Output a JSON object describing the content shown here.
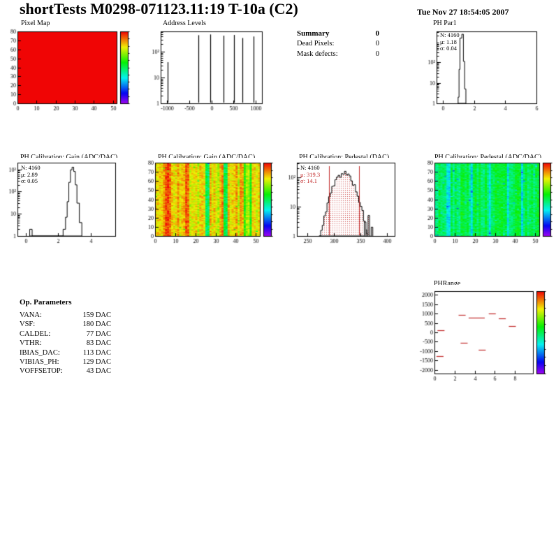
{
  "header": {
    "title": "shortTests M0298-071123.11:19 T-10a (C2)",
    "date": "Tue Nov 27 18:54:05 2007"
  },
  "summary": {
    "title": "Summary",
    "value": "0",
    "rows": [
      {
        "label": "Dead Pixels:",
        "value": "0"
      },
      {
        "label": "Mask defects:",
        "value": "0"
      }
    ]
  },
  "op_parameters": {
    "title": "Op. Parameters",
    "rows": [
      {
        "label": "VANA:",
        "value": "159 DAC"
      },
      {
        "label": "VSF:",
        "value": "180 DAC"
      },
      {
        "label": "CALDEL:",
        "value": "77 DAC"
      },
      {
        "label": "VTHR:",
        "value": "83 DAC"
      },
      {
        "label": "IBIAS_DAC:",
        "value": "113 DAC"
      },
      {
        "label": "VIBIAS_PH:",
        "value": "129 DAC"
      },
      {
        "label": "VOFFSETOP:",
        "value": "43 DAC"
      }
    ]
  },
  "chart_data": [
    {
      "id": "pixel-map",
      "type": "heatmap",
      "title": "Pixel Map",
      "x_range": [
        0,
        52
      ],
      "y_range": [
        0,
        80
      ],
      "x_ticks": [
        0,
        10,
        20,
        30,
        40,
        50
      ],
      "y_ticks": [
        0,
        10,
        20,
        30,
        40,
        50,
        60,
        70,
        80
      ],
      "colorbar": true,
      "palette": "rainbow",
      "pattern": {
        "kind": "uniform",
        "value": 1.0
      },
      "note": "all 4160 pixels at uniform maximum value (solid red)"
    },
    {
      "id": "address-levels",
      "type": "spikes",
      "title": "Address Levels",
      "x_range": [
        -1150,
        1150
      ],
      "x_ticks": [
        -1000,
        -500,
        0,
        500,
        1000
      ],
      "y_log_max_dec": 2.8,
      "y_decades": [
        {
          "dec": 0,
          "label": "1"
        },
        {
          "dec": 1,
          "label": "10"
        },
        {
          "dec": 2,
          "label": "10²"
        }
      ],
      "spikes": [
        [
          -990,
          40
        ],
        [
          -300,
          450
        ],
        [
          -30,
          480
        ],
        [
          280,
          430
        ],
        [
          520,
          460
        ],
        [
          700,
          350
        ],
        [
          960,
          400
        ]
      ]
    },
    {
      "id": "ph-par1",
      "type": "hist",
      "title": "PH Par1",
      "stats": {
        "n": "N: 4160",
        "mu": "μ: 1.18",
        "sigma": "σ: 0.04"
      },
      "x_range": [
        -0.4,
        6
      ],
      "x_ticks": [
        0,
        2,
        4,
        6
      ],
      "y_log_max_dec": 3.5,
      "y_decades": [
        {
          "dec": 0,
          "label": "1"
        },
        {
          "dec": 1,
          "label": "10"
        },
        {
          "dec": 2,
          "label": "10²"
        }
      ],
      "bins": [
        [
          0.98,
          2
        ],
        [
          1.04,
          45
        ],
        [
          1.1,
          1500
        ],
        [
          1.22,
          2300
        ],
        [
          1.32,
          110
        ],
        [
          1.4,
          5
        ],
        [
          1.48,
          0
        ]
      ]
    },
    {
      "id": "gain-hist",
      "type": "hist",
      "title": "PH Calibration: Gain (ADC/DAC)",
      "stats": {
        "n": "N: 4160",
        "mu": "μ: 2.89",
        "sigma": "σ: 0.05"
      },
      "x_range": [
        -0.5,
        5.5
      ],
      "x_ticks": [
        0,
        2,
        4
      ],
      "y_log_max_dec": 3.3,
      "y_decades": [
        {
          "dec": 0,
          "label": "1"
        },
        {
          "dec": 1,
          "label": "10"
        },
        {
          "dec": 2,
          "label": "10²"
        },
        {
          "dec": 3,
          "label": "10³"
        }
      ],
      "bins": [
        [
          0.25,
          2
        ],
        [
          0.4,
          0
        ],
        [
          2.3,
          2
        ],
        [
          2.45,
          7
        ],
        [
          2.55,
          35
        ],
        [
          2.65,
          260
        ],
        [
          2.75,
          950
        ],
        [
          2.85,
          1250
        ],
        [
          2.95,
          800
        ],
        [
          3.05,
          200
        ],
        [
          3.15,
          30
        ],
        [
          3.3,
          4
        ],
        [
          3.45,
          0
        ]
      ]
    },
    {
      "id": "gain-map",
      "type": "heatmap",
      "title": "PH Calibration: Gain (ADC/DAC)",
      "x_range": [
        0,
        52
      ],
      "y_range": [
        0,
        80
      ],
      "x_ticks": [
        0,
        10,
        20,
        30,
        40,
        50
      ],
      "y_ticks": [
        0,
        10,
        20,
        30,
        40,
        50,
        60,
        70,
        80
      ],
      "colorbar": true,
      "palette": "rainbow",
      "pattern": {
        "kind": "noise",
        "seed": 11,
        "mean": 0.8,
        "col_var": 0.09,
        "cell_var": 0.07,
        "speckle": 0.004,
        "col_overrides": {
          "5": 0.93,
          "6": 0.95,
          "7": 0.9,
          "15": 0.93,
          "16": 0.9,
          "25": 0.5,
          "26": 0.48,
          "34": 0.52,
          "35": 0.5,
          "44": 0.6,
          "47": 0.58
        }
      },
      "note": "per-pixel gain map, mostly 0.7-0.95 of scale (red/orange/yellow) with green columns"
    },
    {
      "id": "pedestal-hist",
      "type": "hist",
      "title": "PH Calibration: Pedestal (DAC)",
      "stats": {
        "n": "N: 4160",
        "mu": "μ: 319.3",
        "sigma": "σ: 14.1"
      },
      "stats_accent": true,
      "x_range": [
        230,
        415
      ],
      "x_ticks": [
        250,
        300,
        350,
        400
      ],
      "y_log_max_dec": 2.5,
      "y_decades": [
        {
          "dec": 0,
          "label": "1"
        },
        {
          "dec": 1,
          "label": "10"
        },
        {
          "dec": 2,
          "label": "10²"
        }
      ],
      "fill": "red-dots",
      "gauss": {
        "mu": 319.3,
        "sigma": 14.1,
        "peak": 140,
        "bin": 3,
        "from": 272,
        "to": 369
      },
      "extra_bins": [
        [
          357,
          3
        ],
        [
          364,
          5
        ],
        [
          370,
          2
        ]
      ],
      "vlines": [
        291,
        347
      ]
    },
    {
      "id": "pedestal-map",
      "type": "heatmap",
      "title": "PH Calibration: Pedestal (ADC/DAC)",
      "x_range": [
        0,
        52
      ],
      "y_range": [
        0,
        80
      ],
      "x_ticks": [
        0,
        10,
        20,
        30,
        40,
        50
      ],
      "y_ticks": [
        0,
        10,
        20,
        30,
        40,
        50,
        60,
        70,
        80
      ],
      "colorbar": true,
      "palette": "rainbow",
      "pattern": {
        "kind": "noise",
        "seed": 23,
        "mean": 0.5,
        "col_var": 0.05,
        "cell_var": 0.06,
        "speckle": 0.012,
        "col_overrides": {
          "6": 0.36,
          "7": 0.35,
          "18": 0.34,
          "27": 0.36,
          "36": 0.35,
          "43": 0.34
        }
      },
      "note": "per-pixel pedestal map, mid-scale (green) with cyan columns"
    },
    {
      "id": "ph-range",
      "type": "segments",
      "title": "PHRange",
      "x_range": [
        0,
        9.8
      ],
      "x_ticks": [
        0,
        2,
        4,
        6,
        8
      ],
      "y_range": [
        -2200,
        2200
      ],
      "y_ticks": [
        2000,
        1500,
        1000,
        500,
        0,
        -500,
        -1000,
        -1500,
        -2000
      ],
      "colorbar": true,
      "accent_color": "#c22727",
      "segments": [
        [
          2.4,
          3.1,
          950
        ],
        [
          5.4,
          6.1,
          1000
        ],
        [
          3.4,
          5.0,
          780
        ],
        [
          6.4,
          7.1,
          760
        ],
        [
          0.3,
          1.0,
          120
        ],
        [
          7.4,
          8.1,
          350
        ],
        [
          2.6,
          3.3,
          -550
        ],
        [
          0.2,
          0.9,
          -1250
        ],
        [
          4.4,
          5.1,
          -950
        ]
      ]
    }
  ]
}
